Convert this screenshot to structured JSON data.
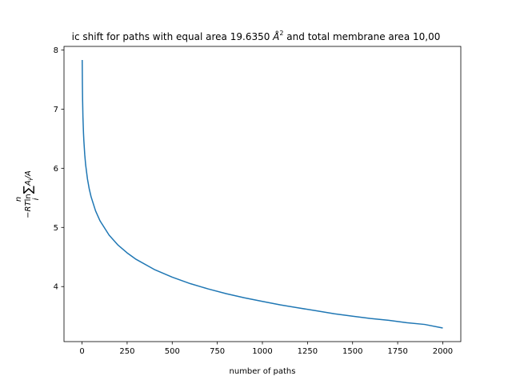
{
  "chart_data": {
    "type": "line",
    "title_prefix": "ic shift for paths with equal area 19.6350 ",
    "title_unit": "Å",
    "title_unit_exp": "2",
    "title_suffix": " and total membrane area 10,00",
    "xlabel": "number of paths",
    "ylabel": "−RTln Σ A_i/A (i = 1..n)",
    "xlim": [
      -100,
      2100
    ],
    "ylim": [
      3.07,
      8.06
    ],
    "xticks": [
      0,
      250,
      500,
      750,
      1000,
      1250,
      1500,
      1750,
      2000
    ],
    "xtick_labels": [
      "0",
      "250",
      "500",
      "750",
      "1000",
      "1250",
      "1500",
      "1750",
      "2000"
    ],
    "yticks": [
      4,
      5,
      6,
      7,
      8
    ],
    "ytick_labels": [
      "4",
      "5",
      "6",
      "7",
      "8"
    ],
    "grid": false,
    "series": [
      {
        "color": "#1f77b4",
        "x": [
          1,
          2,
          3,
          5,
          8,
          10,
          15,
          20,
          30,
          40,
          50,
          75,
          100,
          150,
          200,
          250,
          300,
          400,
          500,
          600,
          700,
          800,
          900,
          1000,
          1100,
          1200,
          1300,
          1400,
          1500,
          1600,
          1700,
          1800,
          1900,
          2000
        ],
        "y": [
          7.83,
          7.42,
          7.18,
          6.87,
          6.6,
          6.47,
          6.23,
          6.06,
          5.82,
          5.65,
          5.52,
          5.28,
          5.11,
          4.87,
          4.7,
          4.57,
          4.46,
          4.29,
          4.16,
          4.05,
          3.96,
          3.88,
          3.81,
          3.75,
          3.69,
          3.64,
          3.59,
          3.54,
          3.5,
          3.46,
          3.43,
          3.39,
          3.36,
          3.3
        ]
      }
    ]
  }
}
